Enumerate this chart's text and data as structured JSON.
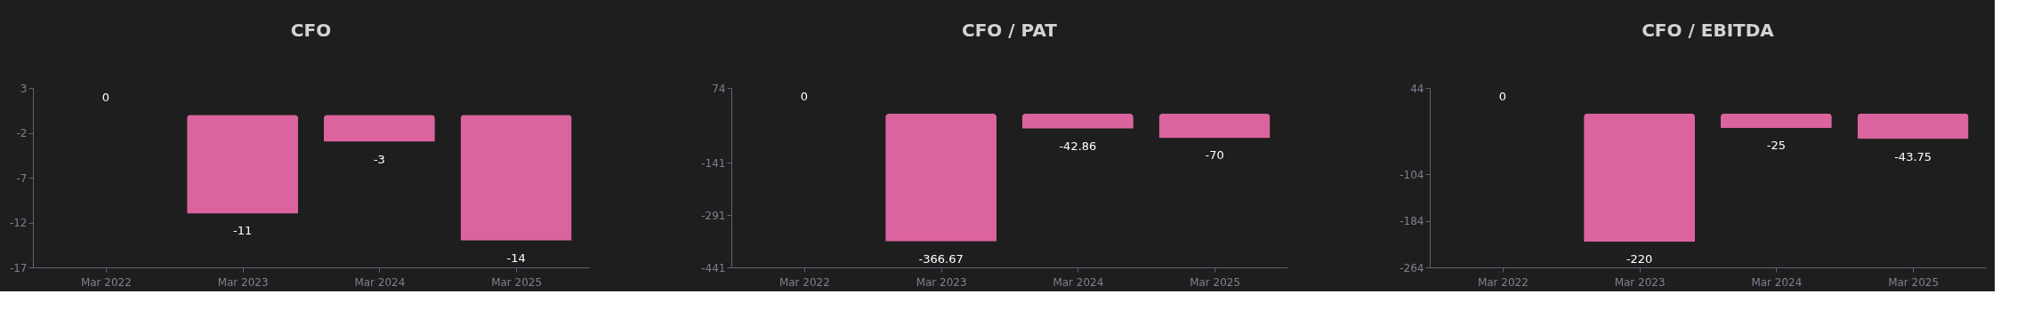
{
  "chart_data": [
    {
      "type": "bar",
      "title": "CFO",
      "categories": [
        "Mar 2022",
        "Mar 2023",
        "Mar 2024",
        "Mar 2025"
      ],
      "values": [
        0,
        -11,
        -3,
        -14
      ],
      "color": "#db649e",
      "ylim": [
        -17,
        3
      ],
      "yticks": [
        3,
        -2,
        -7,
        -12,
        -17
      ],
      "data_labels": true
    },
    {
      "type": "bar",
      "title": "CFO / PAT",
      "categories": [
        "Mar 2022",
        "Mar 2023",
        "Mar 2024",
        "Mar 2025"
      ],
      "values": [
        0,
        -366.67,
        -42.86,
        -70
      ],
      "color": "#db649e",
      "ylim": [
        -441,
        74
      ],
      "yticks": [
        74,
        -141,
        -291,
        -441
      ],
      "data_labels": true
    },
    {
      "type": "bar",
      "title": "CFO / EBITDA",
      "categories": [
        "Mar 2022",
        "Mar 2023",
        "Mar 2024",
        "Mar 2025"
      ],
      "values": [
        0,
        -220,
        -25,
        -43.75
      ],
      "color": "#db649e",
      "ylim": [
        -264,
        44
      ],
      "yticks": [
        44,
        -104,
        -184,
        -264
      ],
      "data_labels": true
    }
  ]
}
